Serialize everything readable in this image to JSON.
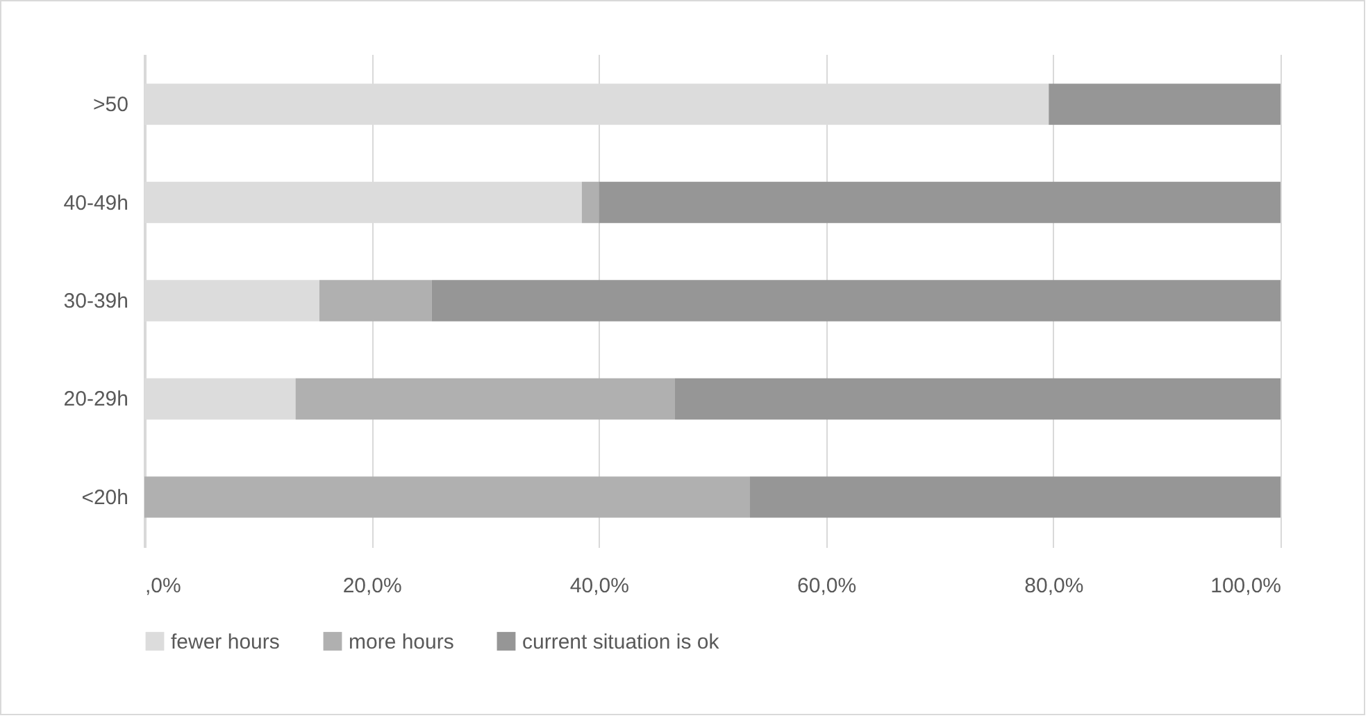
{
  "chart_data": {
    "type": "bar",
    "orientation": "horizontal",
    "stacked": true,
    "categories": [
      ">50",
      "40-49h",
      "30-39h",
      "20-29h",
      "<20h"
    ],
    "series": [
      {
        "name": "fewer hours",
        "color": "#dcdcdc",
        "values": [
          79.6,
          38.5,
          15.4,
          13.3,
          0
        ]
      },
      {
        "name": "more hours",
        "color": "#b0b0b0",
        "values": [
          0,
          1.5,
          9.9,
          33.4,
          53.3
        ]
      },
      {
        "name": "current situation is ok",
        "color": "#969696",
        "values": [
          20.4,
          60.0,
          74.7,
          53.3,
          46.7
        ]
      }
    ],
    "xlim": [
      0,
      100
    ],
    "xticks": [
      {
        "value": 0,
        "label": ",0%"
      },
      {
        "value": 20,
        "label": "20,0%"
      },
      {
        "value": 40,
        "label": "40,0%"
      },
      {
        "value": 60,
        "label": "60,0%"
      },
      {
        "value": 80,
        "label": "80,0%"
      },
      {
        "value": 100,
        "label": "100,0%"
      }
    ],
    "grid": "x",
    "legend": "bottom"
  }
}
